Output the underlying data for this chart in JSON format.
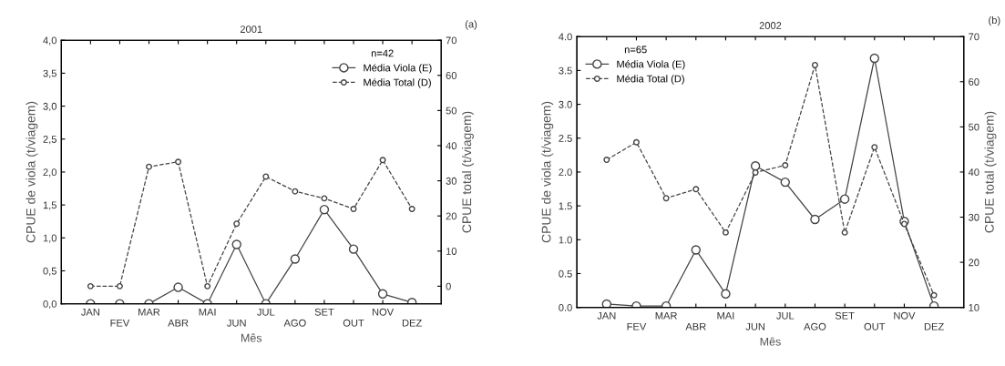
{
  "chart_data": [
    {
      "type": "line",
      "title": "2001",
      "xlabel": "Mês",
      "ylabel": "CPUE de viola (t/viagem)",
      "y2label": "CPUE total (t/viagem)",
      "legend_title": "n=42",
      "annotations": [
        "(a)"
      ],
      "categories": [
        "JAN",
        "FEV",
        "MAR",
        "ABR",
        "MAI",
        "JUN",
        "JUL",
        "AGO",
        "SET",
        "OUT",
        "NOV",
        "DEZ"
      ],
      "ylim": [
        0,
        4
      ],
      "yticks": [
        {
          "value": 0,
          "label": "0,0"
        },
        {
          "value": 0.5,
          "label": "0,5"
        },
        {
          "value": 1,
          "label": "1,0"
        },
        {
          "value": 1.5,
          "label": "1,5"
        },
        {
          "value": 2,
          "label": "2,0"
        },
        {
          "value": 2.5,
          "label": "2,5"
        },
        {
          "value": 3,
          "label": "3,0"
        },
        {
          "value": 3.5,
          "label": "3,5"
        },
        {
          "value": 4,
          "label": "4,0"
        }
      ],
      "y2lim": [
        -5,
        70
      ],
      "y2ticks": [
        0,
        10,
        20,
        30,
        40,
        50,
        60,
        70
      ],
      "grid": false,
      "legend": "top right",
      "marker": "circle",
      "series": [
        {
          "name": "Média Viola (E)",
          "color": "#444444",
          "line_style": "solid",
          "values": [
            0,
            0,
            0,
            0.25,
            0,
            0.9,
            0,
            0.68,
            1.43,
            0.83,
            0.15,
            0.02
          ]
        },
        {
          "name": "Média Total (D)",
          "color": "#444444",
          "line_style": "dashed",
          "axis": "y2",
          "values": [
            0,
            0,
            34,
            35.4,
            0,
            17.8,
            31.2,
            27,
            25,
            22,
            35.9,
            22
          ]
        }
      ]
    },
    {
      "type": "line",
      "title": "2002",
      "xlabel": "Mês",
      "ylabel": "CPUE de viola (t/viagem)",
      "y2label": "CPUE total (t/viagem)",
      "legend_title": "n=65",
      "annotations": [
        "(b)"
      ],
      "categories": [
        "JAN",
        "FEV",
        "MAR",
        "ABR",
        "MAI",
        "JUN",
        "JUL",
        "AGO",
        "SET",
        "OUT",
        "NOV",
        "DEZ"
      ],
      "ylim": [
        0,
        4
      ],
      "yticks": [
        {
          "value": 0,
          "label": "0.0"
        },
        {
          "value": 0.5,
          "label": "0.5"
        },
        {
          "value": 1,
          "label": "1.0"
        },
        {
          "value": 1.5,
          "label": "1.5"
        },
        {
          "value": 2,
          "label": "2.0"
        },
        {
          "value": 2.5,
          "label": "2.5"
        },
        {
          "value": 3,
          "label": "3.0"
        },
        {
          "value": 3.5,
          "label": "3.5"
        },
        {
          "value": 4,
          "label": "4.0"
        }
      ],
      "y2lim": [
        10,
        70
      ],
      "y2ticks": [
        10,
        20,
        30,
        40,
        50,
        60,
        70
      ],
      "grid": false,
      "legend": "top left",
      "marker": "circle",
      "series": [
        {
          "name": "Média Viola (E)",
          "color": "#444444",
          "line_style": "solid",
          "values": [
            0.05,
            0.02,
            0.02,
            0.85,
            0.2,
            2.09,
            1.85,
            1.3,
            1.6,
            3.68,
            1.27,
            0.02
          ]
        },
        {
          "name": "Média Total (D)",
          "color": "#444444",
          "line_style": "dashed",
          "axis": "y2",
          "values": [
            42.7,
            46.6,
            34.2,
            36.2,
            26.6,
            39.9,
            41.5,
            63.7,
            26.6,
            45.5,
            28.5,
            12.7
          ]
        }
      ]
    }
  ]
}
